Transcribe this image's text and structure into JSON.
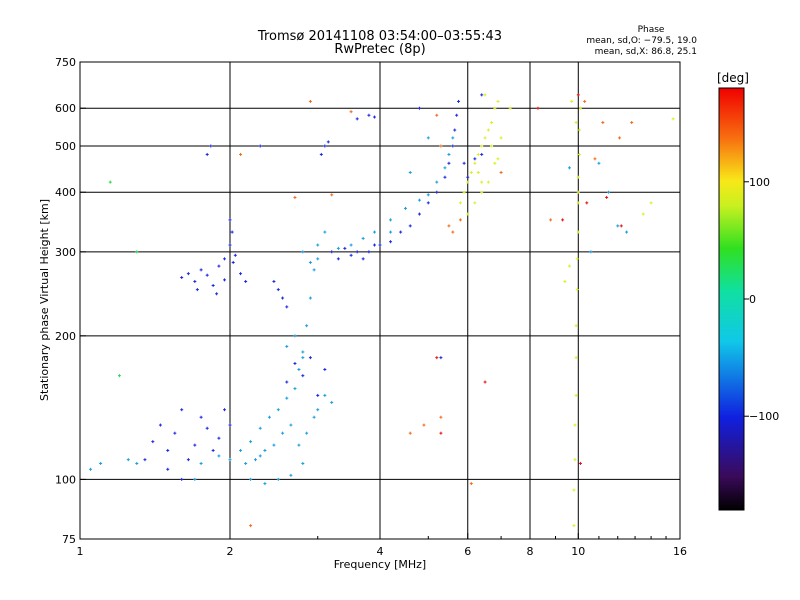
{
  "chart_data": {
    "type": "scatter",
    "title": "Tromsø 20141108 03:54:00–03:55:43",
    "subtitle": "RwPretec (8p)",
    "xlabel": "Frequency [MHz]",
    "ylabel": "Stationary phase Virtual Height [km]",
    "x_scale": "log",
    "y_scale": "log",
    "xlim": [
      1,
      16
    ],
    "ylim": [
      75,
      750
    ],
    "x_ticks": [
      1,
      2,
      4,
      6,
      8,
      10,
      16
    ],
    "x_tick_labels": [
      "1",
      "2",
      "4",
      "6",
      "8",
      "10",
      "16"
    ],
    "y_ticks": [
      75,
      100,
      200,
      300,
      400,
      500,
      600,
      750
    ],
    "y_tick_labels": [
      "75",
      "100",
      "200",
      "300",
      "400",
      "500",
      "600",
      "750"
    ],
    "x_gridlines": [
      2,
      4,
      6,
      8,
      10
    ],
    "y_gridlines": [
      100,
      200,
      300,
      400,
      500,
      600
    ],
    "grid": true,
    "phase_legend": {
      "title": "Phase",
      "o_line": "mean, sd,O: −79.5, 19.0",
      "x_line": "mean, sd,X:  86.8, 25.1"
    },
    "colorbar": {
      "label": "[deg]",
      "min": -180,
      "max": 180,
      "ticks": [
        100,
        0,
        -100
      ],
      "tick_labels": [
        "100",
        "0",
        "−100"
      ]
    },
    "series": [
      {
        "phase_deg": -90,
        "color": "#1a2ae0",
        "points": [
          [
            1.6,
            265
          ],
          [
            1.65,
            270
          ],
          [
            1.7,
            260
          ],
          [
            1.75,
            275
          ],
          [
            1.8,
            268
          ],
          [
            1.85,
            255
          ],
          [
            1.9,
            280
          ],
          [
            1.95,
            290
          ],
          [
            2.0,
            310
          ],
          [
            2.02,
            330
          ],
          [
            2.05,
            295
          ],
          [
            2.1,
            270
          ],
          [
            2.15,
            260
          ],
          [
            1.72,
            250
          ],
          [
            1.88,
            245
          ],
          [
            1.95,
            262
          ],
          [
            2.0,
            350
          ],
          [
            2.03,
            285
          ],
          [
            1.8,
            480
          ],
          [
            1.83,
            500
          ],
          [
            3.05,
            480
          ],
          [
            3.1,
            500
          ],
          [
            3.15,
            510
          ],
          [
            3.2,
            300
          ],
          [
            3.3,
            290
          ],
          [
            3.4,
            305
          ],
          [
            3.5,
            295
          ],
          [
            3.6,
            300
          ],
          [
            3.7,
            290
          ],
          [
            3.8,
            300
          ],
          [
            3.9,
            310
          ],
          [
            4.0,
            310
          ],
          [
            4.2,
            315
          ],
          [
            4.4,
            330
          ],
          [
            4.6,
            340
          ],
          [
            4.8,
            360
          ],
          [
            5.0,
            380
          ],
          [
            5.2,
            400
          ],
          [
            5.4,
            430
          ],
          [
            5.5,
            460
          ],
          [
            5.6,
            500
          ],
          [
            5.65,
            540
          ],
          [
            5.7,
            580
          ],
          [
            5.75,
            620
          ],
          [
            3.6,
            570
          ],
          [
            3.8,
            580
          ],
          [
            3.9,
            575
          ],
          [
            1.4,
            120
          ],
          [
            1.45,
            130
          ],
          [
            1.5,
            115
          ],
          [
            1.55,
            125
          ],
          [
            1.6,
            140
          ],
          [
            1.65,
            110
          ],
          [
            1.7,
            118
          ],
          [
            1.75,
            135
          ],
          [
            1.8,
            128
          ],
          [
            1.85,
            115
          ],
          [
            1.9,
            122
          ],
          [
            1.95,
            140
          ],
          [
            2.0,
            130
          ],
          [
            1.5,
            105
          ],
          [
            1.6,
            100
          ],
          [
            1.35,
            110
          ],
          [
            2.6,
            160
          ],
          [
            2.7,
            175
          ],
          [
            2.8,
            165
          ],
          [
            2.9,
            180
          ],
          [
            3.0,
            150
          ],
          [
            3.1,
            170
          ],
          [
            5.9,
            460
          ],
          [
            6.0,
            430
          ],
          [
            6.2,
            470
          ],
          [
            6.4,
            480
          ],
          [
            2.5,
            250
          ],
          [
            2.55,
            240
          ],
          [
            2.6,
            230
          ],
          [
            2.45,
            260
          ],
          [
            5.3,
            180
          ],
          [
            6.4,
            640
          ],
          [
            2.3,
            500
          ],
          [
            4.8,
            600
          ]
        ]
      },
      {
        "phase_deg": -45,
        "color": "#1a9ee0",
        "points": [
          [
            2.2,
            120
          ],
          [
            2.3,
            128
          ],
          [
            2.4,
            135
          ],
          [
            2.5,
            140
          ],
          [
            2.6,
            148
          ],
          [
            2.7,
            155
          ],
          [
            2.75,
            170
          ],
          [
            2.8,
            185
          ],
          [
            2.85,
            210
          ],
          [
            2.9,
            240
          ],
          [
            2.95,
            275
          ],
          [
            3.0,
            290
          ],
          [
            2.3,
            112
          ],
          [
            2.45,
            118
          ],
          [
            2.55,
            125
          ],
          [
            2.65,
            130
          ],
          [
            2.75,
            118
          ],
          [
            2.85,
            125
          ],
          [
            2.95,
            135
          ],
          [
            3.0,
            140
          ],
          [
            3.1,
            150
          ],
          [
            3.2,
            145
          ],
          [
            2.15,
            108
          ],
          [
            2.25,
            110
          ],
          [
            2.35,
            115
          ],
          [
            1.05,
            105
          ],
          [
            1.1,
            108
          ],
          [
            1.3,
            108
          ],
          [
            1.25,
            110
          ],
          [
            3.3,
            305
          ],
          [
            3.5,
            310
          ],
          [
            3.7,
            320
          ],
          [
            3.9,
            330
          ],
          [
            4.2,
            350
          ],
          [
            4.5,
            370
          ],
          [
            4.8,
            385
          ],
          [
            5.0,
            395
          ],
          [
            5.2,
            420
          ],
          [
            5.4,
            450
          ],
          [
            5.5,
            480
          ],
          [
            5.6,
            520
          ],
          [
            2.8,
            300
          ],
          [
            2.9,
            285
          ],
          [
            3.1,
            330
          ],
          [
            3.0,
            310
          ],
          [
            1.7,
            100
          ],
          [
            1.75,
            108
          ],
          [
            1.9,
            112
          ],
          [
            2.0,
            110
          ],
          [
            2.1,
            115
          ],
          [
            2.2,
            100
          ],
          [
            2.35,
            98
          ],
          [
            2.5,
            100
          ],
          [
            2.65,
            102
          ],
          [
            2.8,
            108
          ],
          [
            5.0,
            520
          ],
          [
            4.6,
            440
          ],
          [
            4.2,
            330
          ],
          [
            10.6,
            300
          ],
          [
            9.6,
            450
          ],
          [
            11.0,
            460
          ],
          [
            11.5,
            400
          ],
          [
            12.0,
            340
          ],
          [
            12.5,
            330
          ],
          [
            2.6,
            190
          ],
          [
            2.7,
            200
          ],
          [
            2.8,
            180
          ]
        ]
      },
      {
        "phase_deg": 60,
        "color": "#dcf01e",
        "points": [
          [
            5.8,
            380
          ],
          [
            5.9,
            400
          ],
          [
            6.0,
            420
          ],
          [
            6.1,
            440
          ],
          [
            6.2,
            460
          ],
          [
            6.3,
            480
          ],
          [
            6.4,
            500
          ],
          [
            6.5,
            520
          ],
          [
            6.6,
            540
          ],
          [
            6.7,
            560
          ],
          [
            6.8,
            600
          ],
          [
            6.9,
            620
          ],
          [
            6.0,
            360
          ],
          [
            6.2,
            380
          ],
          [
            6.4,
            400
          ],
          [
            6.6,
            420
          ],
          [
            6.8,
            460
          ],
          [
            7.0,
            520
          ],
          [
            6.5,
            640
          ],
          [
            9.8,
            80
          ],
          [
            9.8,
            95
          ],
          [
            9.85,
            110
          ],
          [
            9.85,
            130
          ],
          [
            9.9,
            150
          ],
          [
            9.9,
            180
          ],
          [
            9.9,
            210
          ],
          [
            9.95,
            250
          ],
          [
            9.95,
            290
          ],
          [
            10.0,
            330
          ],
          [
            10.0,
            380
          ],
          [
            10.0,
            430
          ],
          [
            10.05,
            480
          ],
          [
            10.05,
            540
          ],
          [
            10.1,
            600
          ],
          [
            9.7,
            620
          ],
          [
            9.9,
            560
          ],
          [
            10.0,
            400
          ],
          [
            9.6,
            280
          ],
          [
            9.4,
            260
          ],
          [
            6.4,
            420
          ],
          [
            6.3,
            440
          ],
          [
            6.7,
            500
          ],
          [
            6.9,
            470
          ],
          [
            7.3,
            600
          ],
          [
            13.5,
            360
          ],
          [
            14.0,
            380
          ],
          [
            15.5,
            570
          ]
        ]
      },
      {
        "phase_deg": 150,
        "color": "#f06c1a",
        "points": [
          [
            4.9,
            130
          ],
          [
            5.3,
            135
          ],
          [
            4.6,
            125
          ],
          [
            5.6,
            330
          ],
          [
            5.8,
            350
          ],
          [
            5.5,
            340
          ],
          [
            2.9,
            620
          ],
          [
            2.1,
            480
          ],
          [
            7.0,
            440
          ],
          [
            8.8,
            350
          ],
          [
            10.3,
            620
          ],
          [
            10.8,
            470
          ],
          [
            11.2,
            560
          ],
          [
            12.1,
            520
          ],
          [
            12.8,
            560
          ],
          [
            2.2,
            80
          ],
          [
            3.2,
            395
          ],
          [
            5.3,
            500
          ],
          [
            2.7,
            390
          ],
          [
            6.1,
            98
          ],
          [
            3.5,
            590
          ],
          [
            5.2,
            580
          ]
        ]
      },
      {
        "phase_deg": 178,
        "color": "#e81414",
        "points": [
          [
            9.3,
            350
          ],
          [
            10.1,
            108
          ],
          [
            10.4,
            380
          ],
          [
            11.4,
            390
          ],
          [
            12.2,
            340
          ],
          [
            5.3,
            125
          ],
          [
            5.2,
            180
          ],
          [
            6.5,
            160
          ],
          [
            8.3,
            600
          ],
          [
            10.0,
            640
          ]
        ]
      },
      {
        "phase_deg": 20,
        "color": "#2ad84a",
        "points": [
          [
            1.15,
            420
          ],
          [
            1.2,
            165
          ],
          [
            1.3,
            300
          ]
        ]
      }
    ]
  }
}
